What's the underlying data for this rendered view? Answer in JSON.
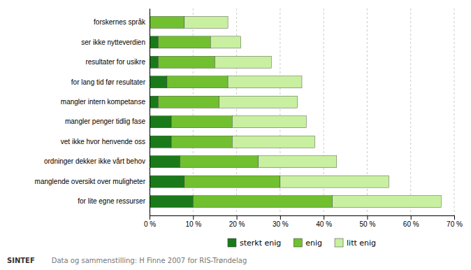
{
  "chart_data": {
    "type": "bar",
    "orientation": "horizontal",
    "stacked": true,
    "categories": [
      "forskernes språk",
      "ser ikke nytteverdien",
      "resultater for usikre",
      "for lang tid før resultater",
      "mangler intern kompetanse",
      "mangler penger tidlig fase",
      "vet ikke hvor henvende oss",
      "ordninger dekker ikke vårt behov",
      "manglende oversikt over muligheter",
      "for lite egne ressurser"
    ],
    "series": [
      {
        "name": "sterkt enig",
        "color": "#1a7a1a",
        "values": [
          0,
          2,
          2,
          4,
          2,
          5,
          5,
          7,
          8,
          10
        ]
      },
      {
        "name": "enig",
        "color": "#70c030",
        "values": [
          8,
          12,
          13,
          14,
          14,
          14,
          14,
          18,
          22,
          32
        ]
      },
      {
        "name": "litt enig",
        "color": "#c8f0a0",
        "values": [
          10,
          7,
          13,
          17,
          18,
          17,
          19,
          18,
          25,
          25
        ]
      }
    ],
    "xlim": [
      0,
      70
    ],
    "xticks": [
      {
        "value": 0,
        "label": "0 %"
      },
      {
        "value": 10,
        "label": "10 %"
      },
      {
        "value": 20,
        "label": "20 %"
      },
      {
        "value": 30,
        "label": "30 %"
      },
      {
        "value": 40,
        "label": "40 %"
      },
      {
        "value": 50,
        "label": "50 %"
      },
      {
        "value": 60,
        "label": "60 %"
      },
      {
        "value": 70,
        "label": "70 %"
      }
    ],
    "grid": true,
    "legend": "bottom",
    "annotations": [
      "SINTEF",
      "Data og sammenstilling: H Finne 2007 for RIS-Trøndelag"
    ]
  }
}
